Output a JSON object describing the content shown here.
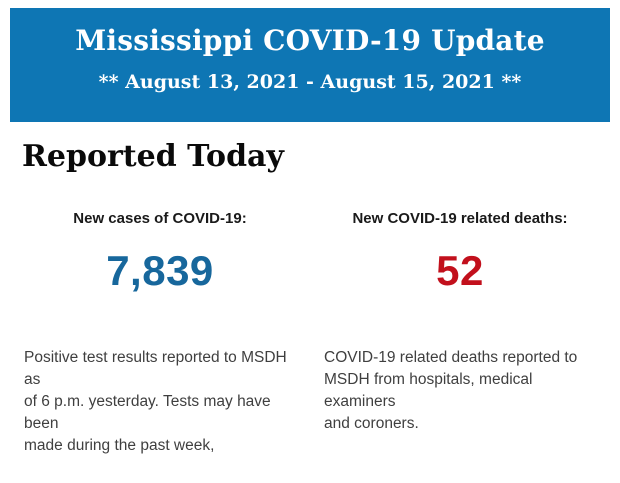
{
  "colors": {
    "header_bg": "#0e76b4",
    "cases_value": "#17679c",
    "deaths_value": "#c2101c"
  },
  "header": {
    "title": "Mississippi COVID-19 Update",
    "subtitle": "** August 13, 2021 - August 15, 2021 **"
  },
  "section": {
    "heading": "Reported Today"
  },
  "stats": {
    "cases": {
      "label": "New cases of COVID-19:",
      "value": "7,839",
      "description": [
        "Positive test results reported to MSDH as",
        "of 6 p.m. yesterday. Tests may have been",
        "made during the past week,"
      ]
    },
    "deaths": {
      "label": "New COVID-19 related deaths:",
      "value": "52",
      "description": [
        "COVID-19 related deaths reported to",
        "MSDH from hospitals, medical examiners",
        "and coroners."
      ]
    }
  }
}
